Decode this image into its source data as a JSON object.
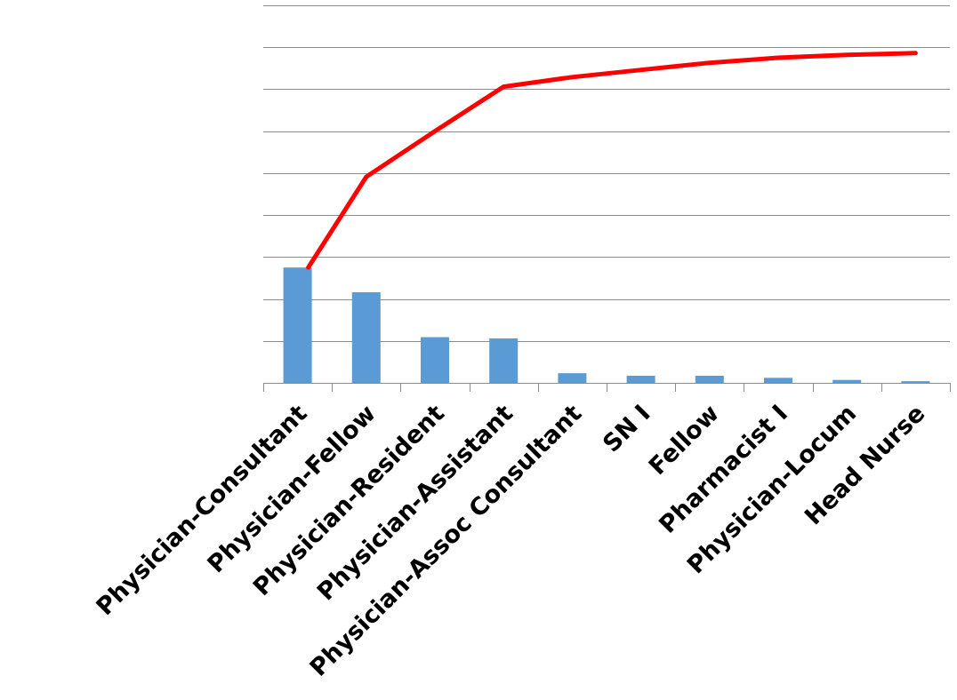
{
  "chart_data": {
    "type": "bar",
    "categories": [
      "Physician-Consultant",
      "Physician-Fellow",
      "Physician-Resident",
      "Physician-Assistant",
      "Physician-Assoc Consultant",
      "SN I",
      "Fellow",
      "Pharmacist I",
      "Physician-Locum",
      "Head Nurse"
    ],
    "series": [
      {
        "type": "bar",
        "values": [
          27.5,
          21.6,
          10.9,
          10.6,
          2.3,
          1.7,
          1.7,
          1.2,
          0.7,
          0.4
        ],
        "color": "#5b9bd5"
      },
      {
        "type": "line",
        "values": [
          27.5,
          49.1,
          60.0,
          70.6,
          72.9,
          74.6,
          76.3,
          77.5,
          78.2,
          78.6
        ],
        "color": "#ff0000"
      }
    ],
    "ylim": [
      0,
      90
    ],
    "gridlines": 9,
    "grid": true,
    "legend": "none"
  }
}
